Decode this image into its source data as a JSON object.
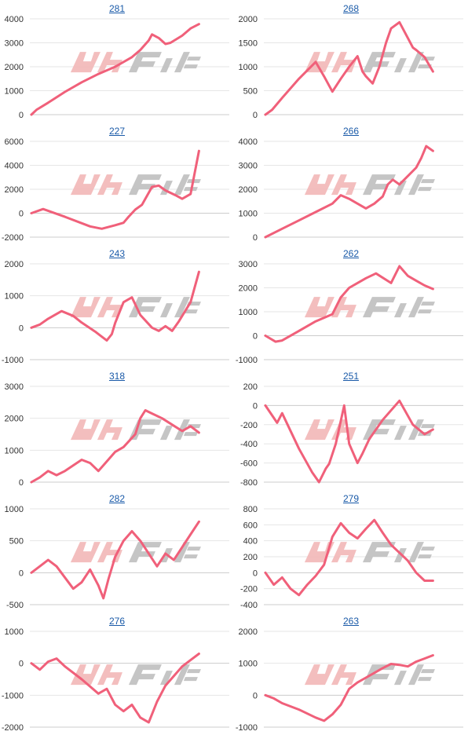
{
  "colors": {
    "line": "#f0607a",
    "grid": "#e6e6e6",
    "axis": "#cccccc",
    "title_link": "#1a5aa8",
    "watermark_left": "#f2b8b8",
    "watermark_right": "#bfbfbf"
  },
  "watermark": "watermark-logo",
  "chart_data": [
    {
      "type": "line",
      "title": "281",
      "yticks": [
        0,
        1000,
        2000,
        3000,
        4000
      ],
      "ylim": [
        0,
        4000
      ],
      "xlim": [
        0,
        1
      ],
      "x": [
        0,
        0.03,
        0.1,
        0.2,
        0.3,
        0.4,
        0.5,
        0.6,
        0.65,
        0.7,
        0.72,
        0.76,
        0.8,
        0.83,
        0.9,
        0.95,
        1.0
      ],
      "values": [
        0,
        200,
        500,
        950,
        1350,
        1700,
        2000,
        2400,
        2700,
        3100,
        3350,
        3200,
        2950,
        3000,
        3300,
        3600,
        3780
      ]
    },
    {
      "type": "line",
      "title": "268",
      "yticks": [
        0,
        500,
        1000,
        1500,
        2000
      ],
      "ylim": [
        0,
        2000
      ],
      "xlim": [
        0,
        1
      ],
      "x": [
        0,
        0.04,
        0.1,
        0.2,
        0.3,
        0.35,
        0.4,
        0.45,
        0.5,
        0.55,
        0.58,
        0.6,
        0.64,
        0.68,
        0.72,
        0.75,
        0.8,
        0.85,
        0.88,
        0.9,
        0.95,
        1.0
      ],
      "values": [
        0,
        100,
        350,
        750,
        1100,
        800,
        480,
        750,
        1000,
        1220,
        900,
        800,
        650,
        1000,
        1500,
        1800,
        1930,
        1600,
        1400,
        1350,
        1200,
        900
      ]
    },
    {
      "type": "line",
      "title": "227",
      "yticks": [
        -2000,
        0,
        2000,
        4000,
        6000
      ],
      "ylim": [
        -2000,
        6000
      ],
      "xlim": [
        0,
        1
      ],
      "x": [
        0,
        0.07,
        0.2,
        0.35,
        0.42,
        0.5,
        0.55,
        0.58,
        0.62,
        0.66,
        0.72,
        0.76,
        0.8,
        0.86,
        0.9,
        0.95,
        1.0
      ],
      "values": [
        0,
        350,
        -300,
        -1100,
        -1300,
        -1000,
        -800,
        -300,
        300,
        700,
        2200,
        2300,
        1900,
        1500,
        1200,
        1600,
        5200
      ]
    },
    {
      "type": "line",
      "title": "266",
      "yticks": [
        0,
        1000,
        2000,
        3000,
        4000
      ],
      "ylim": [
        0,
        4000
      ],
      "xlim": [
        0,
        1
      ],
      "x": [
        0,
        0.1,
        0.2,
        0.3,
        0.4,
        0.45,
        0.5,
        0.55,
        0.6,
        0.65,
        0.7,
        0.73,
        0.76,
        0.8,
        0.85,
        0.9,
        0.93,
        0.96,
        1.0
      ],
      "values": [
        0,
        350,
        700,
        1050,
        1400,
        1750,
        1600,
        1400,
        1200,
        1400,
        1700,
        2200,
        2400,
        2200,
        2550,
        2900,
        3300,
        3800,
        3600
      ]
    },
    {
      "type": "line",
      "title": "243",
      "yticks": [
        -1000,
        0,
        1000,
        2000
      ],
      "ylim": [
        -1000,
        2000
      ],
      "xlim": [
        0,
        1
      ],
      "x": [
        0,
        0.05,
        0.1,
        0.18,
        0.25,
        0.3,
        0.38,
        0.45,
        0.48,
        0.5,
        0.55,
        0.6,
        0.65,
        0.72,
        0.76,
        0.8,
        0.84,
        0.88,
        0.95,
        1.0
      ],
      "values": [
        0,
        100,
        280,
        520,
        370,
        160,
        -120,
        -400,
        -200,
        150,
        800,
        950,
        400,
        0,
        -100,
        50,
        -100,
        200,
        800,
        1750
      ]
    },
    {
      "type": "line",
      "title": "262",
      "yticks": [
        -1000,
        0,
        1000,
        2000,
        3000
      ],
      "ylim": [
        -1000,
        3000
      ],
      "xlim": [
        0,
        1
      ],
      "x": [
        0,
        0.06,
        0.1,
        0.2,
        0.3,
        0.4,
        0.45,
        0.5,
        0.55,
        0.6,
        0.66,
        0.75,
        0.8,
        0.85,
        0.9,
        0.95,
        1.0
      ],
      "values": [
        0,
        -250,
        -200,
        200,
        600,
        900,
        1600,
        2000,
        2200,
        2400,
        2600,
        2200,
        2900,
        2500,
        2300,
        2100,
        1950
      ]
    },
    {
      "type": "line",
      "title": "318",
      "yticks": [
        0,
        1000,
        2000,
        3000
      ],
      "ylim": [
        0,
        3000
      ],
      "xlim": [
        0,
        1
      ],
      "x": [
        0,
        0.05,
        0.1,
        0.15,
        0.2,
        0.3,
        0.35,
        0.4,
        0.45,
        0.5,
        0.55,
        0.62,
        0.65,
        0.68,
        0.72,
        0.78,
        0.84,
        0.9,
        0.95,
        1.0
      ],
      "values": [
        0,
        150,
        350,
        220,
        350,
        700,
        600,
        350,
        650,
        950,
        1100,
        1500,
        2000,
        2250,
        2150,
        2000,
        1800,
        1600,
        1750,
        1550
      ]
    },
    {
      "type": "line",
      "title": "251",
      "yticks": [
        -800,
        -600,
        -400,
        -200,
        0,
        200
      ],
      "ylim": [
        -800,
        200
      ],
      "xlim": [
        0,
        1
      ],
      "x": [
        0,
        0.07,
        0.1,
        0.2,
        0.28,
        0.32,
        0.36,
        0.38,
        0.42,
        0.47,
        0.5,
        0.55,
        0.58,
        0.62,
        0.7,
        0.8,
        0.88,
        0.95,
        1.0
      ],
      "values": [
        0,
        -180,
        -80,
        -450,
        -700,
        -800,
        -660,
        -610,
        -400,
        0,
        -400,
        -600,
        -500,
        -350,
        -150,
        50,
        -200,
        -300,
        -250
      ]
    },
    {
      "type": "line",
      "title": "282",
      "yticks": [
        -500,
        0,
        500,
        1000
      ],
      "ylim": [
        -500,
        1000
      ],
      "xlim": [
        0,
        1
      ],
      "x": [
        0,
        0.05,
        0.1,
        0.15,
        0.25,
        0.3,
        0.35,
        0.4,
        0.43,
        0.46,
        0.5,
        0.55,
        0.6,
        0.65,
        0.7,
        0.75,
        0.8,
        0.85,
        0.9,
        0.95,
        1.0
      ],
      "values": [
        0,
        100,
        200,
        100,
        -250,
        -150,
        50,
        -200,
        -400,
        -100,
        250,
        500,
        650,
        500,
        300,
        100,
        300,
        200,
        400,
        600,
        800
      ]
    },
    {
      "type": "line",
      "title": "279",
      "yticks": [
        -400,
        -200,
        0,
        200,
        400,
        600,
        800
      ],
      "ylim": [
        -400,
        800
      ],
      "xlim": [
        0,
        1
      ],
      "x": [
        0,
        0.05,
        0.1,
        0.15,
        0.2,
        0.25,
        0.3,
        0.35,
        0.4,
        0.45,
        0.5,
        0.55,
        0.6,
        0.65,
        0.7,
        0.75,
        0.8,
        0.85,
        0.9,
        0.95,
        1.0
      ],
      "values": [
        0,
        -150,
        -60,
        -200,
        -280,
        -150,
        -40,
        100,
        450,
        620,
        500,
        430,
        550,
        660,
        500,
        350,
        250,
        150,
        0,
        -100,
        -100
      ]
    },
    {
      "type": "line",
      "title": "276",
      "yticks": [
        -2000,
        -1000,
        0,
        1000
      ],
      "ylim": [
        -2000,
        1000
      ],
      "xlim": [
        0,
        1
      ],
      "x": [
        0,
        0.05,
        0.1,
        0.15,
        0.2,
        0.3,
        0.4,
        0.45,
        0.5,
        0.55,
        0.6,
        0.65,
        0.7,
        0.75,
        0.8,
        0.85,
        0.9,
        0.95,
        1.0
      ],
      "values": [
        0,
        -200,
        50,
        150,
        -100,
        -500,
        -950,
        -800,
        -1300,
        -1500,
        -1300,
        -1700,
        -1850,
        -1200,
        -700,
        -400,
        -100,
        100,
        300
      ]
    },
    {
      "type": "line",
      "title": "263",
      "yticks": [
        -1000,
        0,
        1000,
        2000
      ],
      "ylim": [
        -1000,
        2000
      ],
      "xlim": [
        0,
        1
      ],
      "x": [
        0,
        0.05,
        0.1,
        0.2,
        0.3,
        0.35,
        0.4,
        0.45,
        0.5,
        0.55,
        0.6,
        0.65,
        0.7,
        0.75,
        0.8,
        0.85,
        0.9,
        0.95,
        1.0
      ],
      "values": [
        0,
        -100,
        -250,
        -450,
        -700,
        -800,
        -600,
        -300,
        200,
        400,
        550,
        700,
        850,
        980,
        950,
        900,
        1050,
        1150,
        1250
      ]
    }
  ]
}
